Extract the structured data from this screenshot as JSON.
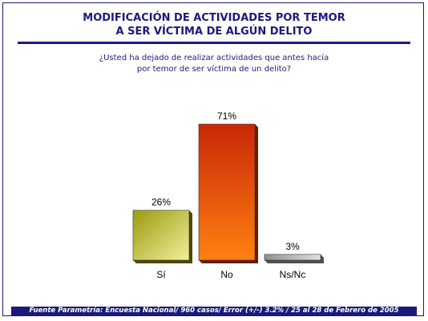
{
  "title": "MODIFICACIÓN DE ACTIVIDADES POR TEMOR\nA SER VÍCTIMA DE ALGÚN DELITO",
  "question": "¿Usted ha dejado  de realizar actividades que antes hacía\npor temor de ser víctima de un delito?",
  "footer": "Fuente Parametría: Encuesta Nacional/ 960 casos/ Error  (+/-)  3.2% / 25 al 28 de Febrero de 2005",
  "colors": {
    "title": "#1a1a7a",
    "bar_si": "#b8b830",
    "bar_no": "#d84010",
    "bar_nsnc": "#b0b0b0"
  },
  "chart_data": {
    "type": "bar",
    "title": "",
    "xlabel": "",
    "ylabel": "",
    "ylim": [
      0,
      71
    ],
    "grid": false,
    "categories": [
      "Sí",
      "No",
      "Ns/Nc"
    ],
    "values": [
      26,
      71,
      3
    ],
    "data_labels": [
      "26%",
      "71%",
      "3%"
    ]
  }
}
